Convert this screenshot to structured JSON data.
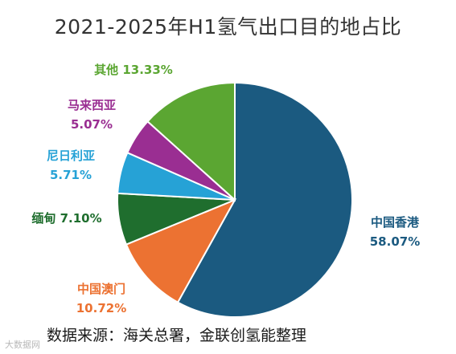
{
  "chart_data": {
    "type": "pie",
    "title": "2021-2025年H1氢气出口目的地占比",
    "categories": [
      "中国香港",
      "中国澳门",
      "缅甸",
      "尼日利亚",
      "马来西亚",
      "其他"
    ],
    "values": [
      58.07,
      10.72,
      7.1,
      5.71,
      5.07,
      13.33
    ],
    "value_labels": [
      "58.07%",
      "10.72%",
      "7.10%",
      "5.71%",
      "5.07%",
      "13.33%"
    ],
    "colors": [
      "#1b5a80",
      "#ec7232",
      "#1f6e2e",
      "#26a2d6",
      "#9a2e92",
      "#5ba632"
    ],
    "start": "12 o'clock, clockwise",
    "legend": "none (data labels beside slices)"
  },
  "footer": {
    "source": "数据来源：海关总署，金联创氢能整理",
    "watermark": "大数据网"
  }
}
